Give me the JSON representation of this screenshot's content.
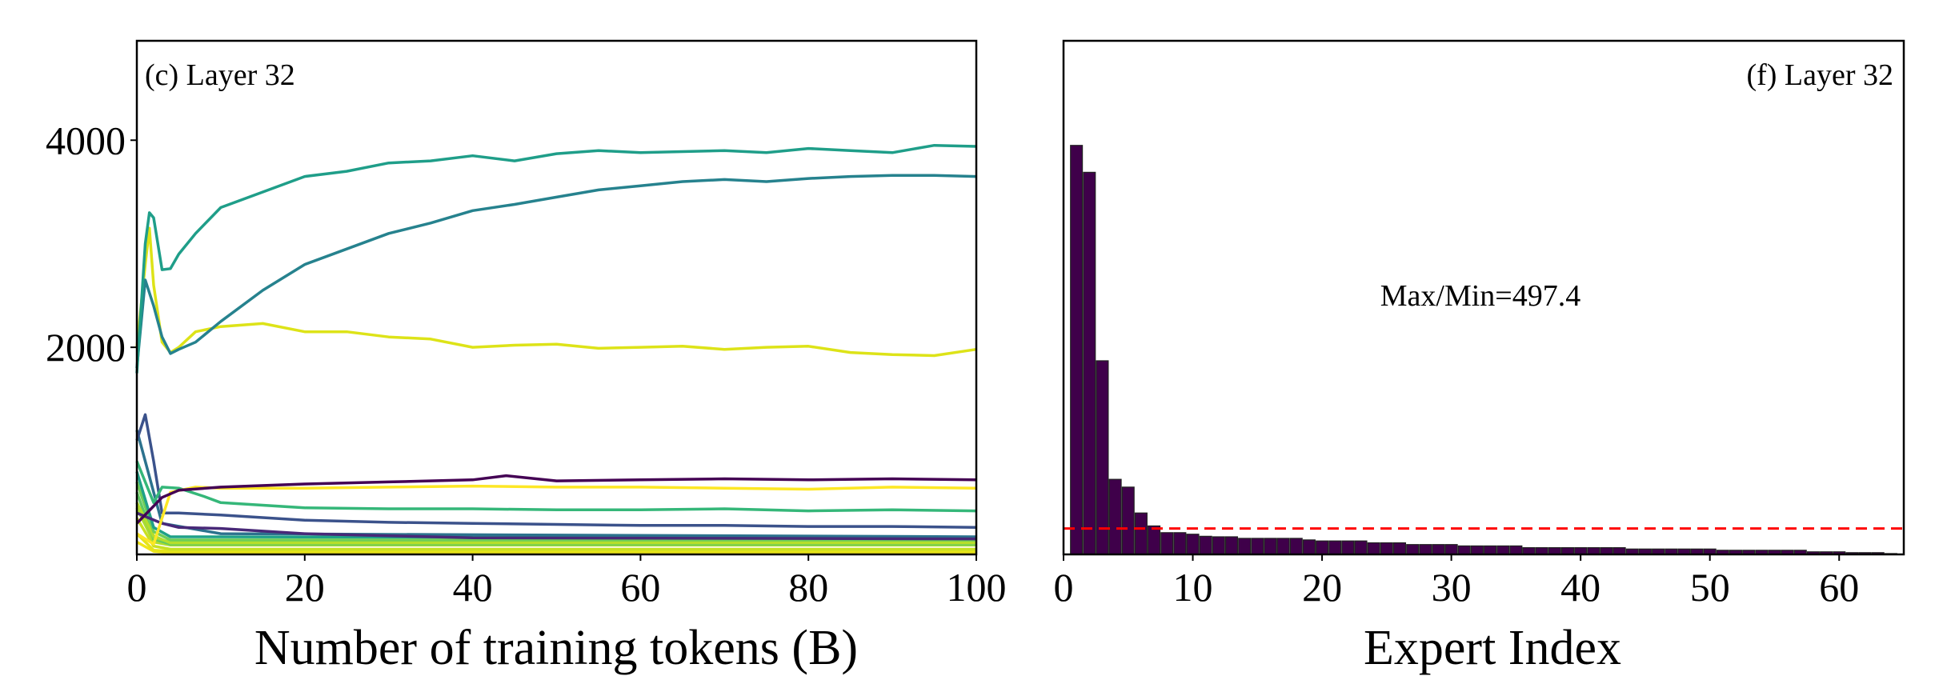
{
  "chart_data": [
    {
      "type": "line",
      "panel_label": "(c) Layer 32",
      "xlabel": "Number of training tokens (B)",
      "ylabel": "",
      "xlim": [
        0,
        100
      ],
      "ylim": [
        0,
        4960
      ],
      "xticks": [
        0,
        20,
        40,
        60,
        80,
        100
      ],
      "yticks": [
        2000,
        4000
      ],
      "grid": false,
      "legend": "none",
      "series": [
        {
          "color": "#f0e51a",
          "x": [
            0,
            2,
            4,
            100
          ],
          "y": [
            120,
            30,
            15,
            15
          ]
        },
        {
          "color": "#e5e419",
          "x": [
            0,
            2,
            4,
            100
          ],
          "y": [
            200,
            40,
            30,
            30
          ]
        },
        {
          "color": "#c8e020",
          "x": [
            0,
            2,
            4,
            100
          ],
          "y": [
            350,
            80,
            50,
            50
          ]
        },
        {
          "color": "#addc30",
          "x": [
            0,
            2,
            4,
            100
          ],
          "y": [
            450,
            120,
            90,
            90
          ]
        },
        {
          "color": "#5ec962",
          "x": [
            0,
            2,
            4,
            100
          ],
          "y": [
            600,
            150,
            100,
            100
          ]
        },
        {
          "color": "#90d743",
          "x": [
            0,
            2,
            4,
            100
          ],
          "y": [
            500,
            160,
            120,
            120
          ]
        },
        {
          "color": "#b5de2b",
          "x": [
            0,
            2,
            4,
            100
          ],
          "y": [
            500,
            180,
            110,
            110
          ]
        },
        {
          "color": "#6ece58",
          "x": [
            0,
            2,
            4,
            100
          ],
          "y": [
            700,
            220,
            140,
            140
          ]
        },
        {
          "color": "#1fa187",
          "x": [
            0,
            2,
            4,
            100
          ],
          "y": [
            800,
            260,
            170,
            160
          ]
        },
        {
          "color": "#2c728e",
          "x": [
            0,
            1,
            3,
            10,
            100
          ],
          "y": [
            1200,
            900,
            300,
            200,
            170
          ]
        },
        {
          "color": "#482878",
          "x": [
            0,
            3,
            5,
            10,
            20,
            30,
            40,
            100
          ],
          "y": [
            400,
            300,
            260,
            250,
            200,
            180,
            160,
            150
          ]
        },
        {
          "color": "#3b528b",
          "x": [
            0,
            1,
            2,
            3,
            5,
            10,
            20,
            30,
            40,
            50,
            60,
            70,
            80,
            90,
            100
          ],
          "y": [
            1100,
            1350,
            900,
            400,
            400,
            380,
            330,
            310,
            300,
            290,
            280,
            280,
            270,
            270,
            260
          ]
        },
        {
          "color": "#35b779",
          "x": [
            0,
            2,
            3,
            5,
            8,
            10,
            20,
            30,
            40,
            50,
            60,
            70,
            80,
            90,
            100
          ],
          "y": [
            900,
            500,
            650,
            640,
            560,
            500,
            450,
            440,
            440,
            430,
            430,
            440,
            420,
            430,
            420
          ]
        },
        {
          "color": "#fde725",
          "x": [
            0,
            2,
            4,
            7,
            10,
            20,
            30,
            40,
            50,
            60,
            70,
            80,
            90,
            100
          ],
          "y": [
            200,
            100,
            600,
            650,
            640,
            640,
            650,
            660,
            650,
            650,
            640,
            630,
            650,
            640
          ]
        },
        {
          "color": "#440154",
          "x": [
            0,
            3,
            5,
            10,
            20,
            30,
            40,
            44,
            50,
            60,
            70,
            80,
            90,
            100
          ],
          "y": [
            300,
            550,
            620,
            650,
            680,
            700,
            720,
            760,
            710,
            720,
            730,
            720,
            730,
            720
          ]
        },
        {
          "color": "#dde318",
          "x": [
            0,
            1,
            1.5,
            2,
            3,
            4,
            5,
            7,
            10,
            15,
            20,
            25,
            30,
            35,
            40,
            45,
            50,
            55,
            60,
            65,
            70,
            75,
            80,
            85,
            90,
            95,
            100
          ],
          "y": [
            2000,
            2800,
            3150,
            2600,
            2050,
            1950,
            2000,
            2150,
            2200,
            2230,
            2150,
            2150,
            2100,
            2080,
            2000,
            2020,
            2030,
            1990,
            2000,
            2010,
            1980,
            2000,
            2010,
            1950,
            1930,
            1920,
            1980
          ]
        },
        {
          "color": "#26828e",
          "x": [
            0,
            1,
            2,
            3,
            4,
            5,
            7,
            10,
            15,
            20,
            25,
            30,
            35,
            40,
            45,
            50,
            55,
            60,
            65,
            70,
            75,
            80,
            85,
            90,
            95,
            100
          ],
          "y": [
            1800,
            2650,
            2400,
            2100,
            1940,
            1980,
            2050,
            2250,
            2550,
            2800,
            2950,
            3100,
            3200,
            3320,
            3380,
            3450,
            3520,
            3560,
            3600,
            3620,
            3600,
            3630,
            3650,
            3660,
            3660,
            3650
          ]
        },
        {
          "color": "#1f9e89",
          "x": [
            0,
            1,
            1.5,
            2,
            3,
            4,
            5,
            7,
            10,
            15,
            20,
            25,
            30,
            35,
            40,
            45,
            50,
            55,
            60,
            65,
            70,
            75,
            80,
            85,
            90,
            95,
            100
          ],
          "y": [
            1750,
            3000,
            3300,
            3250,
            2750,
            2760,
            2900,
            3100,
            3350,
            3500,
            3650,
            3700,
            3780,
            3800,
            3850,
            3800,
            3870,
            3900,
            3880,
            3890,
            3900,
            3880,
            3920,
            3900,
            3880,
            3950,
            3940
          ]
        }
      ]
    },
    {
      "type": "bar",
      "panel_label": "(f) Layer 32",
      "xlabel": "Expert Index",
      "ylabel": "",
      "annotation": "Max/Min=497.4",
      "xlim": [
        0,
        65
      ],
      "ylim": [
        0,
        4960
      ],
      "xticks": [
        0,
        10,
        20,
        30,
        40,
        50,
        60
      ],
      "grid": false,
      "bar_color": "#3f004a",
      "reference_line": {
        "value": 250,
        "color": "#ff0000",
        "style": "dashed"
      },
      "categories": [
        1,
        2,
        3,
        4,
        5,
        6,
        7,
        8,
        9,
        10,
        11,
        12,
        13,
        14,
        15,
        16,
        17,
        18,
        19,
        20,
        21,
        22,
        23,
        24,
        25,
        26,
        27,
        28,
        29,
        30,
        31,
        32,
        33,
        34,
        35,
        36,
        37,
        38,
        39,
        40,
        41,
        42,
        43,
        44,
        45,
        46,
        47,
        48,
        49,
        50,
        51,
        52,
        53,
        54,
        55,
        56,
        57,
        58,
        59,
        60,
        61,
        62,
        63,
        64
      ],
      "values": [
        3950,
        3690,
        1870,
        725,
        650,
        400,
        275,
        210,
        210,
        195,
        175,
        170,
        170,
        155,
        155,
        155,
        155,
        155,
        140,
        130,
        130,
        130,
        130,
        112,
        112,
        112,
        95,
        95,
        95,
        95,
        82,
        82,
        82,
        82,
        82,
        65,
        65,
        65,
        65,
        65,
        65,
        65,
        65,
        52,
        52,
        52,
        52,
        52,
        52,
        52,
        40,
        40,
        40,
        40,
        40,
        40,
        40,
        25,
        25,
        25,
        17,
        17,
        17,
        8
      ]
    }
  ]
}
